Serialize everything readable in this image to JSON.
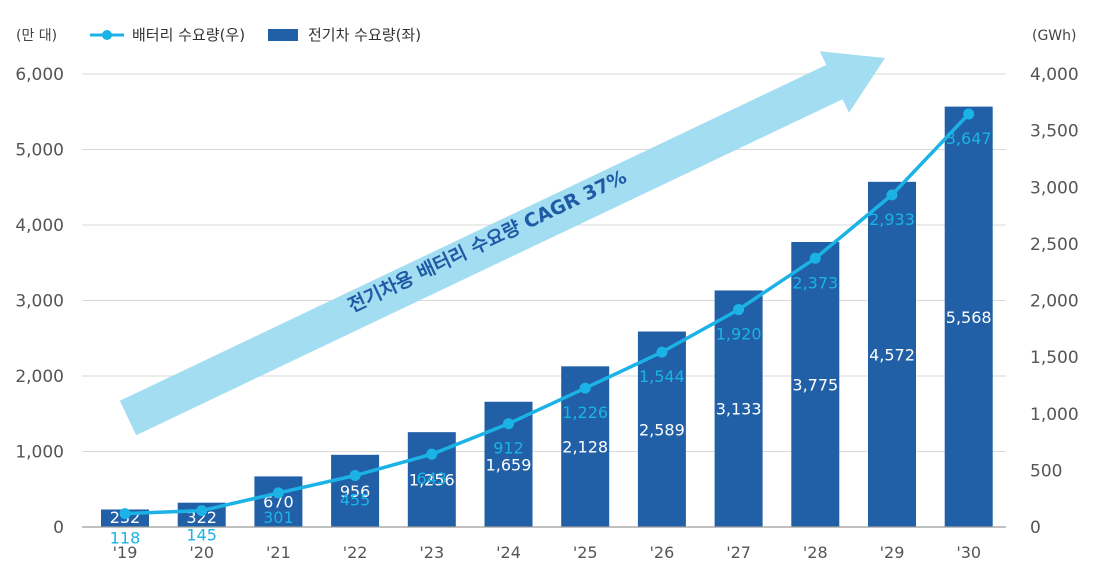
{
  "chart_data": {
    "type": "bar",
    "categories": [
      "'19",
      "'20",
      "'21",
      "'22",
      "'23",
      "'24",
      "'25",
      "'26",
      "'27",
      "'28",
      "'29",
      "'30"
    ],
    "series": [
      {
        "name": "전기차 수요량(좌)",
        "type": "bar",
        "axis": "left",
        "values": [
          232,
          322,
          670,
          956,
          1256,
          1659,
          2128,
          2589,
          3133,
          3775,
          4572,
          5568
        ],
        "labels": [
          "232",
          "322",
          "670",
          "956",
          "1,256",
          "1,659",
          "2,128",
          "2,589",
          "3,133",
          "3,775",
          "4,572",
          "5,568"
        ]
      },
      {
        "name": "배터리 수요량(우)",
        "type": "line",
        "axis": "right",
        "values": [
          118,
          145,
          301,
          455,
          643,
          912,
          1226,
          1544,
          1920,
          2373,
          2933,
          3647
        ],
        "labels": [
          "118",
          "145",
          "301",
          "455",
          "643",
          "912",
          "1,226",
          "1,544",
          "1,920",
          "2,373",
          "2,933",
          "3,647"
        ]
      }
    ],
    "y_left": {
      "unit": "(만 대)",
      "range": [
        0,
        6000
      ],
      "ticks": [
        "0",
        "1,000",
        "2,000",
        "3,000",
        "4,000",
        "5,000",
        "6,000"
      ]
    },
    "y_right": {
      "unit": "(GWh)",
      "range": [
        0,
        4000
      ],
      "ticks": [
        "0",
        "500",
        "1,000",
        "1,500",
        "2,000",
        "2,500",
        "3,000",
        "3,500",
        "4,000"
      ]
    },
    "annotation": "전기차용 배터리 수요량 CAGR 37%",
    "legend_position": "top-left",
    "grid": true,
    "colors": {
      "bar": "#2160a6",
      "line": "#1bb3e6",
      "arrow": "#a3ddf1",
      "annotation": "#1f5aa6"
    }
  }
}
